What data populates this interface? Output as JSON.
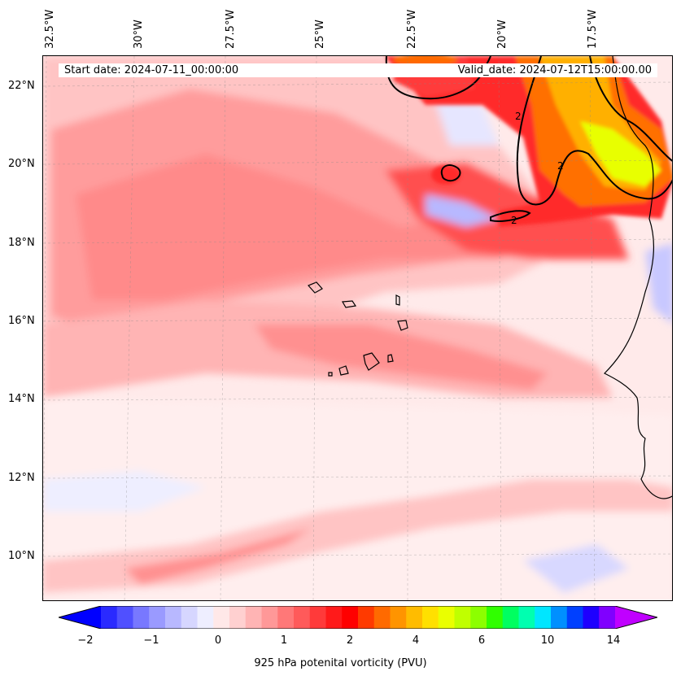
{
  "header": {
    "start_date": "Start date: 2024-07-11_00:00:00",
    "valid_date": "Valid_date: 2024-07-12T15:00:00.00"
  },
  "axes": {
    "lon_labels": [
      "32.5°W",
      "30°W",
      "27.5°W",
      "25°W",
      "22.5°W",
      "20°W",
      "17.5°W"
    ],
    "lat_labels": [
      "22°N",
      "20°N",
      "18°N",
      "16°N",
      "14°N",
      "12°N",
      "10°N"
    ]
  },
  "contour_label": "2",
  "colorbar": {
    "ticks": [
      "−2",
      "−1",
      "0",
      "1",
      "2",
      "4",
      "6",
      "10",
      "14"
    ],
    "title": "925 hPa potenital vorticity (PVU)",
    "colors": [
      "#0000ff",
      "#2a2aff",
      "#5050ff",
      "#7878ff",
      "#9a9aff",
      "#b8b8ff",
      "#d6d6ff",
      "#eeeeff",
      "#ffe8e8",
      "#ffd0d0",
      "#ffb4b4",
      "#ff9898",
      "#ff7878",
      "#ff5a5a",
      "#ff3a3a",
      "#ff1a1a",
      "#ff0000",
      "#ff3a00",
      "#ff6a00",
      "#ff9400",
      "#ffbc00",
      "#ffe000",
      "#eaff00",
      "#c0ff00",
      "#8cff00",
      "#30ff00",
      "#00ff60",
      "#00ffb0",
      "#00e6ff",
      "#0090ff",
      "#0040ff",
      "#1e00ff",
      "#8000ff",
      "#c000ff"
    ]
  }
}
